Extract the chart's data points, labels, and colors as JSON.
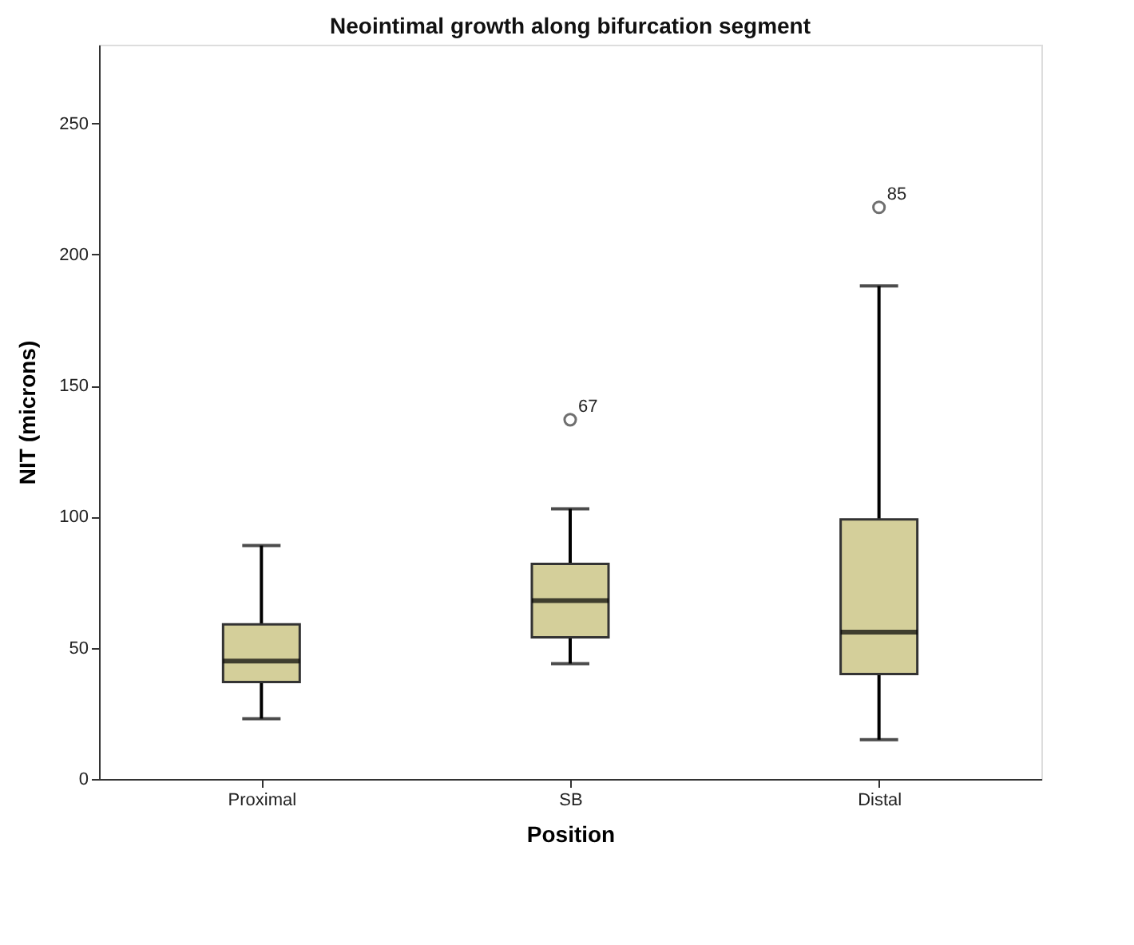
{
  "chart_data": {
    "type": "box",
    "title": "Neointimal growth along bifurcation segment",
    "xlabel": "Position",
    "ylabel": "NIT (microns)",
    "categories": [
      "Proximal",
      "SB",
      "Distal"
    ],
    "series": [
      {
        "color": "#d4cf9a",
        "boxes": [
          {
            "low": 23,
            "q1": 37,
            "median": 45,
            "q3": 59,
            "high": 89
          },
          {
            "low": 44,
            "q1": 54,
            "median": 68,
            "q3": 82,
            "high": 103,
            "outliers": [
              137
            ]
          },
          {
            "low": 15,
            "q1": 40,
            "median": 56,
            "q3": 99,
            "high": 188,
            "outliers": [
              218
            ]
          }
        ]
      }
    ],
    "ylim": [
      0,
      280
    ],
    "yticks": [
      0,
      50,
      100,
      150,
      200,
      250
    ],
    "grid": false,
    "annotations": [
      "67",
      "85"
    ]
  }
}
